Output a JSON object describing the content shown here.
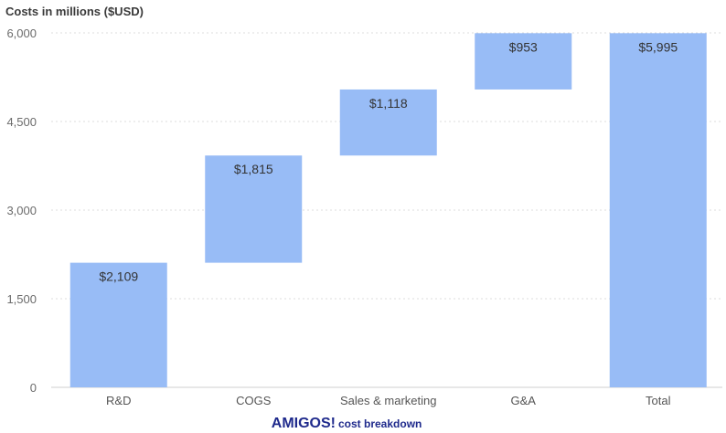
{
  "chart_data": {
    "type": "bar",
    "ylabel": "Costs in millions ($USD)",
    "ylim": [
      0,
      6000
    ],
    "yticks": [
      0,
      1500,
      3000,
      4500,
      6000
    ],
    "ytick_labels": [
      "0",
      "1,500",
      "3,000",
      "4,500",
      "6,000"
    ],
    "grid": true,
    "categories": [
      "R&D",
      "COGS",
      "Sales & marketing",
      "G&A",
      "Total"
    ],
    "series": [
      {
        "values": [
          2109,
          1815,
          1118,
          953,
          5995
        ],
        "bases": [
          0,
          2109,
          3924,
          5042,
          0
        ],
        "labels": [
          "$2,109",
          "$1,815",
          "$1,118",
          "$953",
          "$5,995"
        ]
      }
    ],
    "bar_color": "#98bcf6",
    "caption": {
      "main": "AMIGOS!",
      "sub": "cost breakdown"
    }
  }
}
